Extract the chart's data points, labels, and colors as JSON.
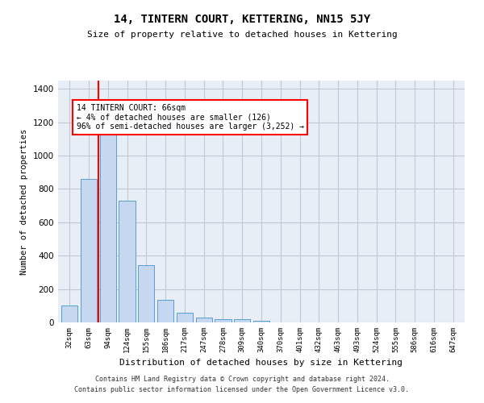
{
  "title": "14, TINTERN COURT, KETTERING, NN15 5JY",
  "subtitle": "Size of property relative to detached houses in Kettering",
  "xlabel": "Distribution of detached houses by size in Kettering",
  "ylabel": "Number of detached properties",
  "footer_line1": "Contains HM Land Registry data © Crown copyright and database right 2024.",
  "footer_line2": "Contains public sector information licensed under the Open Government Licence v3.0.",
  "categories": [
    "32sqm",
    "63sqm",
    "94sqm",
    "124sqm",
    "155sqm",
    "186sqm",
    "217sqm",
    "247sqm",
    "278sqm",
    "309sqm",
    "340sqm",
    "370sqm",
    "401sqm",
    "432sqm",
    "463sqm",
    "493sqm",
    "524sqm",
    "555sqm",
    "586sqm",
    "616sqm",
    "647sqm"
  ],
  "values": [
    103,
    858,
    1130,
    728,
    345,
    133,
    60,
    30,
    18,
    18,
    10,
    0,
    0,
    0,
    0,
    0,
    0,
    0,
    0,
    0,
    0
  ],
  "bar_color": "#c5d8f0",
  "bar_edge_color": "#5a9fd4",
  "grid_color": "#c0c8d8",
  "background_color": "#e8eef5",
  "annotation_line1": "14 TINTERN COURT: 66sqm",
  "annotation_line2": "← 4% of detached houses are smaller (126)",
  "annotation_line3": "96% of semi-detached houses are larger (3,252) →",
  "red_line_x": 1.5,
  "annotation_box_facecolor": "white",
  "annotation_box_edgecolor": "red",
  "red_line_color": "red",
  "ylim": [
    0,
    1450
  ],
  "yticks": [
    0,
    200,
    400,
    600,
    800,
    1000,
    1200,
    1400
  ]
}
